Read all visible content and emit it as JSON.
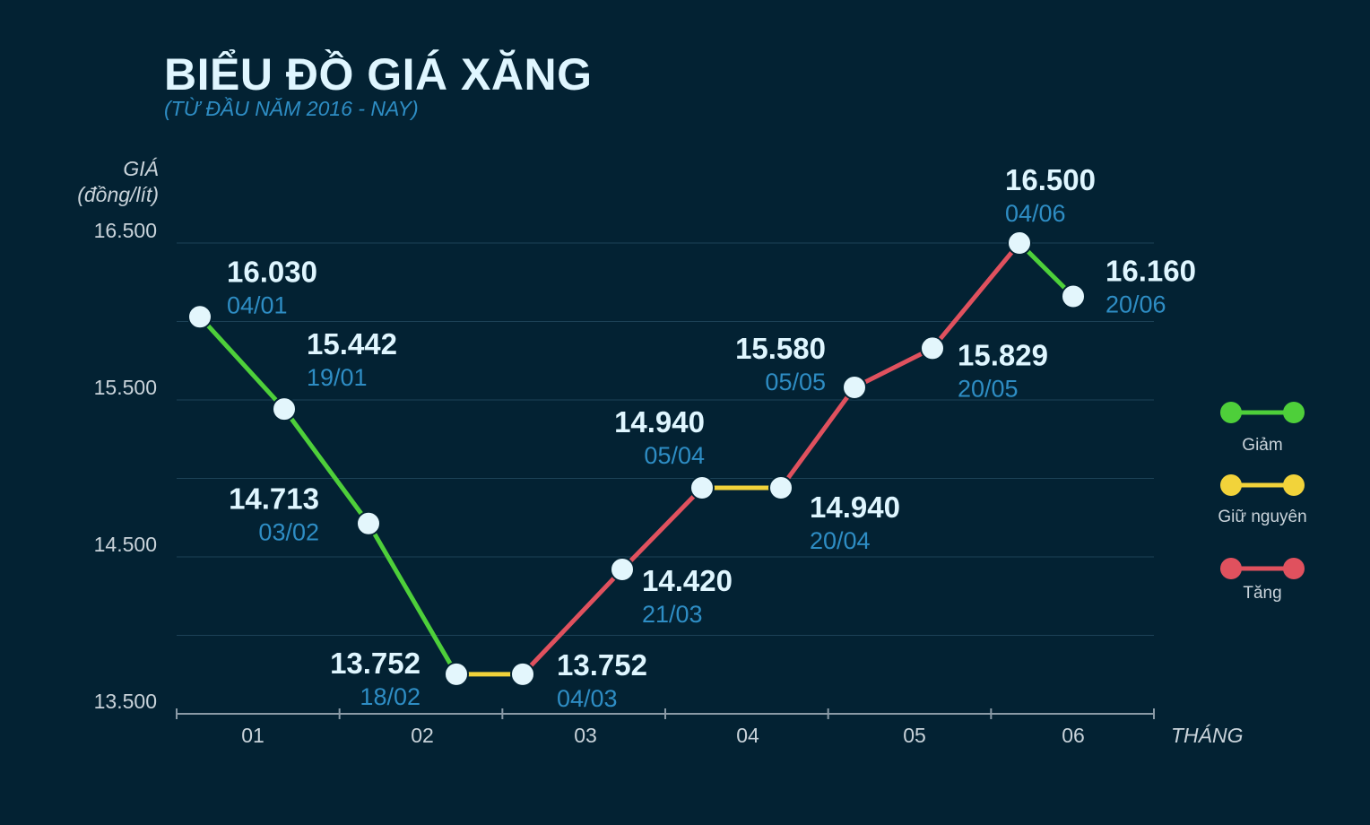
{
  "header": {
    "title": "BIỂU ĐỒ GIÁ XĂNG",
    "subtitle": "(TỪ ĐẦU NĂM 2016 - NAY)"
  },
  "chart_data": {
    "type": "line",
    "title": "BIỂU ĐỒ GIÁ XĂNG",
    "subtitle": "(TỪ ĐẦU NĂM 2016 - NAY)",
    "ylabel": [
      "GIÁ",
      "(đồng/lít)"
    ],
    "xlabel": "THÁNG",
    "ylim": [
      13500,
      16500
    ],
    "y_ticks": [
      "13.500",
      "14.500",
      "15.500",
      "16.500"
    ],
    "x_ticks": [
      "01",
      "02",
      "03",
      "04",
      "05",
      "06"
    ],
    "points": [
      {
        "date": "04/01",
        "value": 16030,
        "label": "16.030"
      },
      {
        "date": "19/01",
        "value": 15442,
        "label": "15.442"
      },
      {
        "date": "03/02",
        "value": 14713,
        "label": "14.713"
      },
      {
        "date": "18/02",
        "value": 13752,
        "label": "13.752"
      },
      {
        "date": "04/03",
        "value": 13752,
        "label": "13.752"
      },
      {
        "date": "21/03",
        "value": 14420,
        "label": "14.420"
      },
      {
        "date": "05/04",
        "value": 14940,
        "label": "14.940"
      },
      {
        "date": "20/04",
        "value": 14940,
        "label": "14.940"
      },
      {
        "date": "05/05",
        "value": 15580,
        "label": "15.580"
      },
      {
        "date": "20/05",
        "value": 15829,
        "label": "15.829"
      },
      {
        "date": "04/06",
        "value": 16500,
        "label": "16.500"
      },
      {
        "date": "20/06",
        "value": 16160,
        "label": "16.160"
      }
    ],
    "segment_types": [
      "Giảm",
      "Giảm",
      "Giảm",
      "Giữ nguyên",
      "Tăng",
      "Tăng",
      "Giữ nguyên",
      "Tăng",
      "Tăng",
      "Tăng",
      "Giảm"
    ],
    "legend": [
      {
        "name": "Giảm",
        "color": "#4ecf3a"
      },
      {
        "name": "Giữ nguyên",
        "color": "#f2d33a"
      },
      {
        "name": "Tăng",
        "color": "#e0515e"
      }
    ],
    "legend_position": "right",
    "grid": true
  }
}
